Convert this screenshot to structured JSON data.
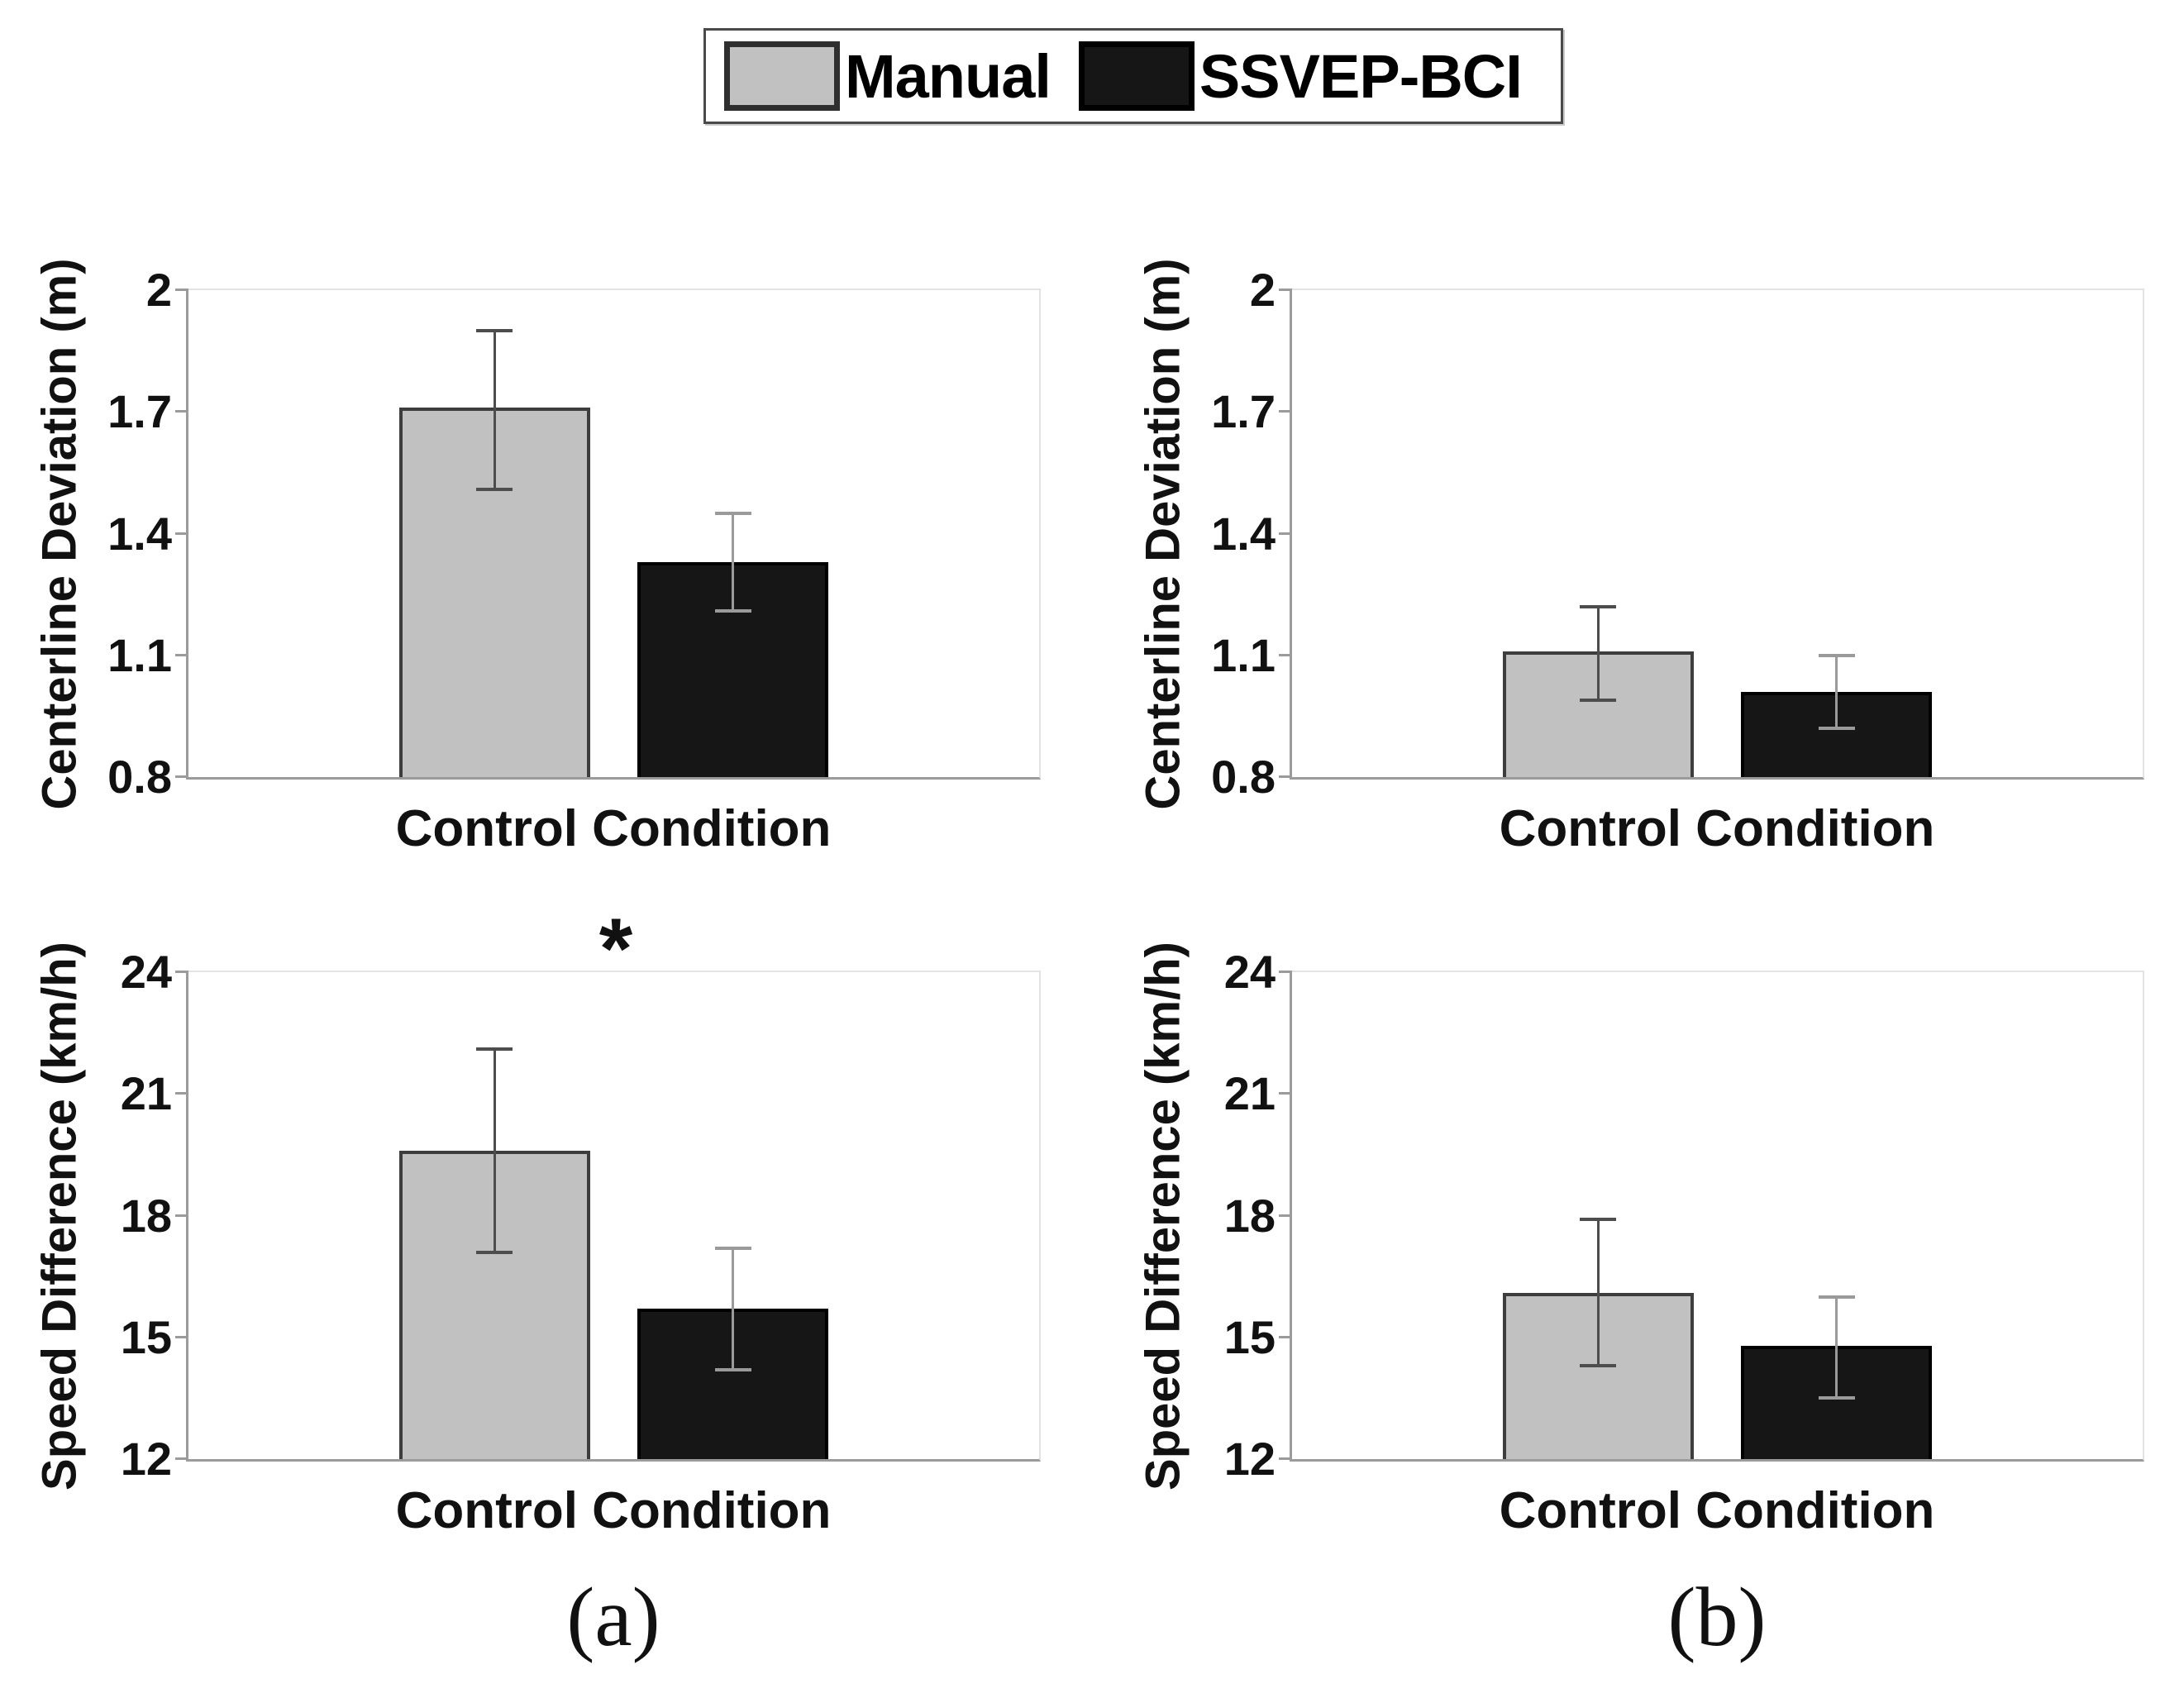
{
  "legend": {
    "items": [
      {
        "label": "Manual",
        "color": "#c1c1c1"
      },
      {
        "label": "SSVEP-BCI",
        "color": "#161616"
      }
    ],
    "position": "top-center",
    "border_color": "#4a4a4a"
  },
  "panels": {
    "a_label": "(a)",
    "b_label": "(b)"
  },
  "colors": {
    "manual_fill": "#c1c1c1",
    "manual_edge": "#3d3d3d",
    "ssvep_fill": "#161616",
    "ssvep_edge": "#000000",
    "axis": "#9b9b9b"
  },
  "chart_data": [
    {
      "type": "bar",
      "panel": "a",
      "ylabel": "Centerline Deviation (m)",
      "xlabel": "Control Condition",
      "categories": [
        "Control Condition"
      ],
      "ylim": [
        0.8,
        2
      ],
      "yticks": [
        0.8,
        1.1,
        1.4,
        1.7,
        2
      ],
      "ytick_labels": [
        "0.8",
        "1.1",
        "1.4",
        "1.7",
        "2"
      ],
      "grid": false,
      "legend_position": "figure-top",
      "significance": "",
      "series": [
        {
          "name": "Manual",
          "value": 1.71,
          "err_low": 1.51,
          "err_high": 1.9
        },
        {
          "name": "SSVEP-BCI",
          "value": 1.33,
          "err_low": 1.21,
          "err_high": 1.45
        }
      ]
    },
    {
      "type": "bar",
      "panel": "b",
      "ylabel": "Centerline Deviation (m)",
      "xlabel": "Control Condition",
      "categories": [
        "Control Condition"
      ],
      "ylim": [
        0.8,
        2
      ],
      "yticks": [
        0.8,
        1.1,
        1.4,
        1.7,
        2
      ],
      "ytick_labels": [
        "0.8",
        "1.1",
        "1.4",
        "1.7",
        "2"
      ],
      "grid": false,
      "legend_position": "figure-top",
      "significance": "",
      "series": [
        {
          "name": "Manual",
          "value": 1.11,
          "err_low": 0.99,
          "err_high": 1.22
        },
        {
          "name": "SSVEP-BCI",
          "value": 1.01,
          "err_low": 0.92,
          "err_high": 1.1
        }
      ]
    },
    {
      "type": "bar",
      "panel": "a",
      "ylabel": "Speed Difference (km/h)",
      "xlabel": "Control Condition",
      "categories": [
        "Control Condition"
      ],
      "ylim": [
        12,
        24
      ],
      "yticks": [
        12,
        15,
        18,
        21,
        24
      ],
      "ytick_labels": [
        "12",
        "15",
        "18",
        "21",
        "24"
      ],
      "grid": false,
      "legend_position": "figure-top",
      "significance": "*",
      "series": [
        {
          "name": "Manual",
          "value": 19.6,
          "err_low": 17.1,
          "err_high": 22.1
        },
        {
          "name": "SSVEP-BCI",
          "value": 15.7,
          "err_low": 14.2,
          "err_high": 17.2
        }
      ]
    },
    {
      "type": "bar",
      "panel": "b",
      "ylabel": "Speed Difference (km/h)",
      "xlabel": "Control Condition",
      "categories": [
        "Control Condition"
      ],
      "ylim": [
        12,
        24
      ],
      "yticks": [
        12,
        15,
        18,
        21,
        24
      ],
      "ytick_labels": [
        "12",
        "15",
        "18",
        "21",
        "24"
      ],
      "grid": false,
      "legend_position": "figure-top",
      "significance": "",
      "series": [
        {
          "name": "Manual",
          "value": 16.1,
          "err_low": 14.3,
          "err_high": 17.9
        },
        {
          "name": "SSVEP-BCI",
          "value": 14.8,
          "err_low": 13.5,
          "err_high": 16.0
        }
      ]
    }
  ]
}
